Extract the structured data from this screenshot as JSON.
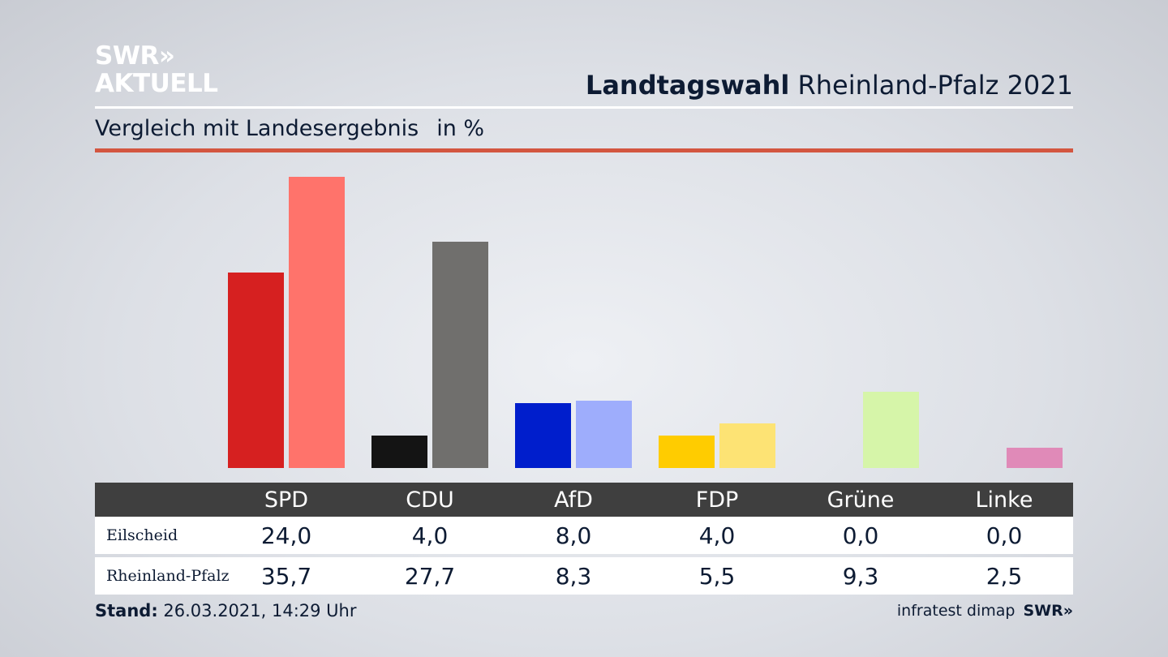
{
  "logo": {
    "line1": "SWR»",
    "line2": "AKTUELL"
  },
  "header": {
    "title_bold": "Landtagswahl",
    "title_rest": " Rheinland-Pfalz 2021"
  },
  "subtitle": {
    "text": "Vergleich mit Landesergebnis",
    "unit": "in %"
  },
  "colors": {
    "SPD": [
      "#d62020",
      "#ff736b"
    ],
    "CDU": [
      "#141414",
      "#706f6d"
    ],
    "AfD": [
      "#001ecc",
      "#9eadfc"
    ],
    "FDP": [
      "#ffcc00",
      "#fde374"
    ],
    "Grüne": [
      "#b7e86b",
      "#d6f5a9"
    ],
    "Linke": [
      "#c2397e",
      "#e08ab8"
    ]
  },
  "chart_data": {
    "type": "bar",
    "categories": [
      "SPD",
      "CDU",
      "AfD",
      "FDP",
      "Grüne",
      "Linke"
    ],
    "series": [
      {
        "name": "Eilscheid",
        "values": [
          24.0,
          4.0,
          8.0,
          4.0,
          0.0,
          0.0
        ],
        "labels": [
          "24,0",
          "4,0",
          "8,0",
          "4,0",
          "0,0",
          "0,0"
        ]
      },
      {
        "name": "Rheinland-Pfalz",
        "values": [
          35.7,
          27.7,
          8.3,
          5.5,
          9.3,
          2.5
        ],
        "labels": [
          "35,7",
          "27,7",
          "8,3",
          "5,5",
          "9,3",
          "2,5"
        ]
      }
    ],
    "ylim": [
      0,
      36
    ]
  },
  "footer": {
    "stand_label": "Stand:",
    "stand_value": " 26.03.2021, 14:29 Uhr",
    "source": "infratest dimap",
    "brand": "SWR»"
  }
}
